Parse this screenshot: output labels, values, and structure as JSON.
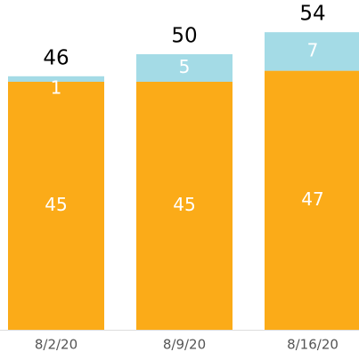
{
  "chart_data": {
    "type": "stacked_bar",
    "categories": [
      "8/2/20",
      "8/9/20",
      "8/16/20"
    ],
    "series": [
      {
        "name": null,
        "color": "#fbab18",
        "values": [
          45,
          45,
          47
        ]
      },
      {
        "name": null,
        "color": "#a4dbe6",
        "values": [
          1,
          5,
          7
        ]
      }
    ],
    "totals": [
      46,
      50,
      54
    ],
    "ylim": [
      0,
      60
    ]
  }
}
